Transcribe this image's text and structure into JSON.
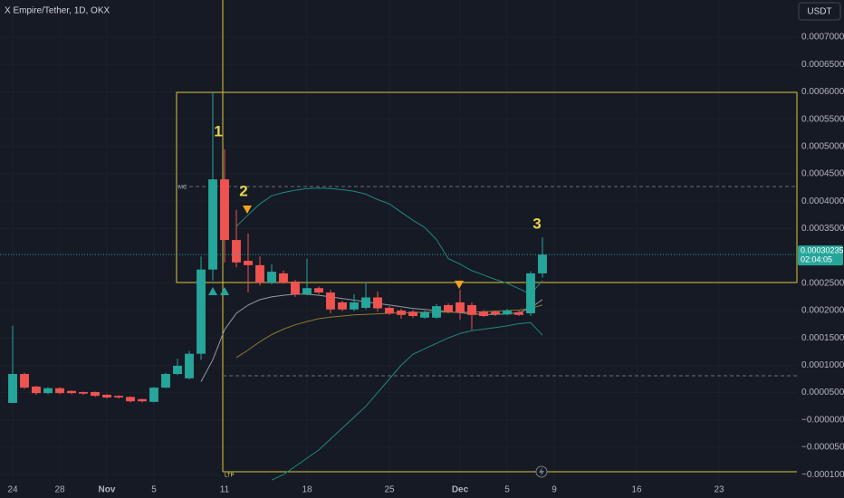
{
  "chart_data": {
    "type": "candlestick",
    "title": "X Empire/Tether, 1D, OKX",
    "currency": "USDT",
    "annotations": [
      "1",
      "2",
      "3"
    ],
    "level_labels": [
      "MC",
      "LTP"
    ],
    "last_price": {
      "value": 0.00030235,
      "label": "0.00030235"
    },
    "countdown": "02:04:05",
    "up_color": "#26a69a",
    "down_color": "#ef5350",
    "grid": true,
    "categories": [
      "24",
      null,
      null,
      null,
      "28",
      null,
      null,
      null,
      "Nov",
      null,
      null,
      null,
      "5",
      null,
      null,
      null,
      null,
      null,
      "11",
      null,
      null,
      null,
      null,
      null,
      null,
      "18",
      null,
      null,
      null,
      null,
      null,
      null,
      "25",
      null,
      null,
      null,
      null,
      null,
      "Dec",
      null,
      null,
      null,
      "5",
      null,
      null,
      null,
      "9",
      null,
      null,
      null,
      null,
      null,
      null,
      "16",
      null,
      null,
      null,
      null,
      null,
      null,
      "23",
      null,
      null,
      null,
      null,
      null,
      null
    ],
    "open": [
      3.1e-05,
      8.4e-05,
      6.1e-05,
      4.9e-05,
      5.8e-05,
      5.3e-05,
      5.1e-05,
      5.1e-05,
      4.6e-05,
      4.4e-05,
      4.2e-05,
      3.8e-05,
      3.3e-05,
      5.9e-05,
      8.4e-05,
      7.6e-05,
      0.000121,
      0.000275,
      0.00044,
      0.000329,
      0.000291,
      0.000283,
      0.000251,
      0.000268,
      0.000253,
      0.00023,
      0.000241,
      0.000233,
      0.000215,
      0.000202,
      0.000205,
      0.000224,
      0.000205,
      0.0002,
      0.000198,
      0.000187,
      0.000187,
      0.00021,
      0.000215,
      0.00021,
      0.000198,
      0.000198,
      0.000193,
      0.000197,
      0.000195,
      0.000268,
      null,
      null,
      null,
      null,
      null,
      null,
      null,
      null,
      null,
      null,
      null,
      null,
      null,
      null,
      null,
      null,
      null,
      null,
      null,
      null,
      null
    ],
    "high": [
      0.000172,
      8.6e-05,
      6.2e-05,
      6e-05,
      6e-05,
      5.4e-05,
      5.2e-05,
      5.2e-05,
      4.7e-05,
      4.5e-05,
      4.3e-05,
      3.9e-05,
      6e-05,
      8.6e-05,
      0.000112,
      0.000126,
      0.000299,
      0.000599,
      0.000495,
      0.000384,
      0.000341,
      0.000299,
      0.000285,
      0.000273,
      0.000256,
      0.000295,
      0.000244,
      0.000238,
      0.000218,
      0.00023,
      0.000252,
      0.000235,
      0.000208,
      0.000203,
      0.000201,
      0.0002,
      0.000212,
      0.000213,
      0.000238,
      0.000215,
      0.000201,
      0.0002,
      0.000203,
      0.0002,
      0.000272,
      0.000334,
      null,
      null,
      null,
      null,
      null,
      null,
      null,
      null,
      null,
      null,
      null,
      null,
      null,
      null,
      null,
      null,
      null,
      null,
      null,
      null,
      null
    ],
    "low": [
      3.1e-05,
      5.7e-05,
      4.6e-05,
      4.7e-05,
      4.7e-05,
      4.7e-05,
      4.6e-05,
      4.2e-05,
      3.9e-05,
      3.9e-05,
      3.2e-05,
      3.2e-05,
      3.2e-05,
      5.8e-05,
      8.2e-05,
      7.4e-05,
      0.00011,
      0.000255,
      0.000288,
      0.000279,
      0.000233,
      0.000246,
      0.000248,
      0.000249,
      0.000225,
      0.000228,
      0.00023,
      0.000195,
      0.000199,
      0.000199,
      0.000202,
      0.000198,
      0.000192,
      0.000185,
      0.000187,
      0.000185,
      0.000185,
      0.000195,
      0.000183,
      0.000165,
      0.000188,
      0.00019,
      0.000191,
      0.00019,
      0.00019,
      0.00026,
      null,
      null,
      null,
      null,
      null,
      null,
      null,
      null,
      null,
      null,
      null,
      null,
      null,
      null,
      null,
      null,
      null,
      null,
      null,
      null,
      null
    ],
    "close": [
      8.4e-05,
      5.9e-05,
      4.9e-05,
      5.8e-05,
      4.9e-05,
      4.9e-05,
      4.8e-05,
      4.4e-05,
      4.1e-05,
      4.1e-05,
      3.4e-05,
      3.4e-05,
      5.9e-05,
      8.4e-05,
      9.9e-05,
      0.000121,
      0.000275,
      0.00044,
      0.000329,
      0.000288,
      0.000283,
      0.000251,
      0.000271,
      0.000251,
      0.00023,
      0.000241,
      0.000233,
      0.000202,
      0.000202,
      0.000215,
      0.000224,
      0.000204,
      0.000195,
      0.000192,
      0.00019,
      0.000197,
      0.000208,
      0.000198,
      0.000197,
      0.000192,
      0.00019,
      0.000193,
      0.0002,
      0.000192,
      0.000268,
      0.00030235,
      null,
      null,
      null,
      null,
      null,
      null,
      null,
      null,
      null,
      null,
      null,
      null,
      null,
      null,
      null,
      null,
      null,
      null,
      null,
      null,
      null
    ],
    "overlays": [
      {
        "color": "#1f8a78",
        "values": [
          null,
          null,
          null,
          null,
          null,
          null,
          null,
          null,
          null,
          null,
          null,
          null,
          null,
          null,
          null,
          null,
          null,
          null,
          null,
          0.000354,
          0.000375,
          0.000395,
          0.00041,
          0.000416,
          0.00042,
          0.000423,
          0.000424,
          0.000423,
          0.000421,
          0.000418,
          0.000413,
          0.000403,
          0.000395,
          0.00038,
          0.000365,
          0.000352,
          0.00033,
          0.000295,
          0.000285,
          0.000273,
          0.000265,
          0.000257,
          0.00025,
          0.00024,
          0.00023,
          0.000255,
          null,
          null,
          null,
          null,
          null,
          null,
          null,
          null,
          null,
          null,
          null,
          null,
          null,
          null,
          null,
          null,
          null,
          null,
          null,
          null,
          null
        ]
      },
      {
        "color": "#1f8a78",
        "values": [
          null,
          null,
          null,
          null,
          null,
          null,
          null,
          null,
          null,
          null,
          null,
          null,
          null,
          null,
          null,
          null,
          null,
          null,
          null,
          null,
          null,
          null,
          -0.00011,
          -0.0001,
          -8.5e-05,
          -7e-05,
          -5.5e-05,
          -3.5e-05,
          -1.5e-05,
          5e-06,
          2.5e-05,
          5e-05,
          7.5e-05,
          0.0001,
          0.00012,
          0.00013,
          0.00014,
          0.00015,
          0.000158,
          0.000163,
          0.000166,
          0.000169,
          0.000172,
          0.000176,
          0.000178,
          0.000155,
          null,
          null,
          null,
          null,
          null,
          null,
          null,
          null,
          null,
          null,
          null,
          null,
          null,
          null,
          null,
          null,
          null,
          null,
          null,
          null,
          null
        ]
      },
      {
        "color": "#9598a1",
        "values": [
          null,
          null,
          null,
          null,
          null,
          null,
          null,
          null,
          null,
          null,
          null,
          null,
          null,
          null,
          null,
          null,
          7e-05,
          0.00011,
          0.000165,
          0.000195,
          0.00021,
          0.00022,
          0.000225,
          0.000228,
          0.00023,
          0.00023,
          0.000228,
          0.000225,
          0.000222,
          0.000219,
          0.000216,
          0.000213,
          0.00021,
          0.000207,
          0.000204,
          0.000202,
          0.0002,
          0.000198,
          0.000196,
          0.000194,
          0.000193,
          0.000193,
          0.000194,
          0.000196,
          0.000205,
          0.00022,
          null,
          null,
          null,
          null,
          null,
          null,
          null,
          null,
          null,
          null,
          null,
          null,
          null,
          null,
          null,
          null,
          null,
          null,
          null,
          null,
          null
        ]
      },
      {
        "color": "#8c7a2e",
        "values": [
          null,
          null,
          null,
          null,
          null,
          null,
          null,
          null,
          null,
          null,
          null,
          null,
          null,
          null,
          null,
          null,
          null,
          null,
          null,
          0.000114,
          0.000128,
          0.000143,
          0.000156,
          0.000166,
          0.000174,
          0.00018,
          0.000185,
          0.000188,
          0.00019,
          0.000192,
          0.000193,
          0.000194,
          0.000195,
          0.000196,
          0.000196,
          0.000197,
          0.000197,
          0.000197,
          0.000197,
          0.000197,
          0.000198,
          0.000199,
          0.0002,
          0.000201,
          0.000204,
          0.00021,
          null,
          null,
          null,
          null,
          null,
          null,
          null,
          null,
          null,
          null,
          null,
          null,
          null,
          null,
          null,
          null,
          null,
          null,
          null,
          null,
          null
        ]
      }
    ],
    "ylim": [
      -0.000118,
      0.000768
    ],
    "yticks": [
      {
        "value": 0.0007,
        "label": "0.00070000"
      },
      {
        "value": 0.00065,
        "label": "0.00065000"
      },
      {
        "value": 0.0006,
        "label": "0.00060000"
      },
      {
        "value": 0.00055,
        "label": "0.00055000"
      },
      {
        "value": 0.0005,
        "label": "0.00050000"
      },
      {
        "value": 0.00045,
        "label": "0.00045000"
      },
      {
        "value": 0.0004,
        "label": "0.00040000"
      },
      {
        "value": 0.00035,
        "label": "0.00035000"
      },
      {
        "value": 0.00025,
        "label": "0.00025000"
      },
      {
        "value": 0.0002,
        "label": "0.00020000"
      },
      {
        "value": 0.00015,
        "label": "0.00015000"
      },
      {
        "value": 0.0001,
        "label": "0.00010000"
      },
      {
        "value": 5e-05,
        "label": "0.00005000"
      },
      {
        "value": 0,
        "label": "−0.00000000"
      },
      {
        "value": -5e-05,
        "label": "−0.00005000"
      },
      {
        "value": -0.0001,
        "label": "−0.00010000"
      }
    ]
  }
}
